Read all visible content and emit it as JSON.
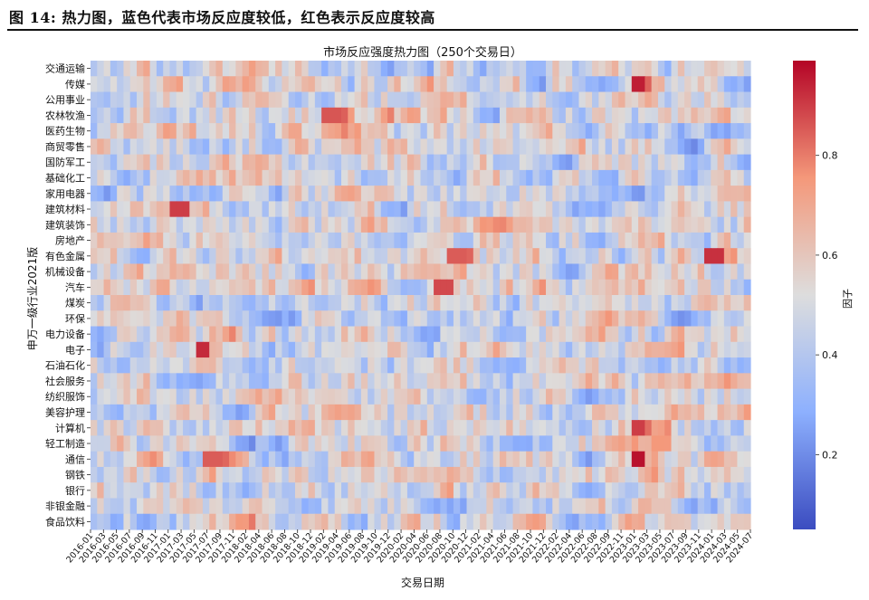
{
  "figure_caption": "图 14: 热力图，蓝色代表市场反应度较低，红色表示反应度较高",
  "chart_data": {
    "type": "heatmap",
    "title": "市场反应强度热力图（250个交易日）",
    "xlabel": "交易日期",
    "ylabel": "申万一级行业2021版",
    "colorbar_label": "因子",
    "colorbar_ticks": [
      0.2,
      0.4,
      0.6,
      0.8
    ],
    "value_range": [
      0.05,
      0.99
    ],
    "colormap": "coolwarm",
    "colormap_colors": [
      "#3b4cc0",
      "#8db0fe",
      "#dddddd",
      "#f4987a",
      "#b40426"
    ],
    "columns": 100,
    "rows": [
      "交通运输",
      "传媒",
      "公用事业",
      "农林牧渔",
      "医药生物",
      "商贸零售",
      "国防军工",
      "基础化工",
      "家用电器",
      "建筑材料",
      "建筑装饰",
      "房地产",
      "有色金属",
      "机械设备",
      "汽车",
      "煤炭",
      "环保",
      "电力设备",
      "电子",
      "石油石化",
      "社会服务",
      "纺织服饰",
      "美容护理",
      "计算机",
      "轻工制造",
      "通信",
      "钢铁",
      "银行",
      "非银金融",
      "食品饮料"
    ],
    "x_tick_labels": [
      "2016-01",
      "2016-03",
      "2016-05",
      "2016-07",
      "2016-09",
      "2016-11",
      "2017-01",
      "2017-03",
      "2017-05",
      "2017-07",
      "2017-09",
      "2017-11",
      "2018-02",
      "2018-04",
      "2018-06",
      "2018-08",
      "2018-10",
      "2018-12",
      "2019-02",
      "2019-04",
      "2019-06",
      "2019-08",
      "2019-10",
      "2019-12",
      "2020-02",
      "2020-04",
      "2020-06",
      "2020-08",
      "2020-10",
      "2020-12",
      "2021-02",
      "2021-04",
      "2021-06",
      "2021-08",
      "2021-10",
      "2021-12",
      "2022-02",
      "2022-04",
      "2022-06",
      "2022-08",
      "2022-09",
      "2022-11",
      "2023-01",
      "2023-03",
      "2023-05",
      "2023-07",
      "2023-09",
      "2023-11",
      "2024-01",
      "2024-03",
      "2024-05",
      "2024-07"
    ],
    "hotspots": [
      {
        "row": "传媒",
        "x_from": "2023-01",
        "x_to": "2023-03",
        "value": 0.95
      },
      {
        "row": "通信",
        "x_from": "2023-01",
        "x_to": "2023-03",
        "value": 0.97
      },
      {
        "row": "计算机",
        "x_from": "2023-01",
        "x_to": "2023-03",
        "value": 0.9
      },
      {
        "row": "有色金属",
        "x_from": "2024-01",
        "x_to": "2024-03",
        "value": 0.92
      },
      {
        "row": "电子",
        "x_from": "2017-05",
        "x_to": "2017-07",
        "value": 0.93
      },
      {
        "row": "建筑材料",
        "x_from": "2017-01",
        "x_to": "2017-03",
        "value": 0.9
      },
      {
        "row": "汽车",
        "x_from": "2020-08",
        "x_to": "2020-10",
        "value": 0.88
      },
      {
        "row": "有色金属",
        "x_from": "2020-10",
        "x_to": "2020-12",
        "value": 0.85
      },
      {
        "row": "通信",
        "x_from": "2017-07",
        "x_to": "2017-09",
        "value": 0.85
      },
      {
        "row": "农林牧渔",
        "x_from": "2019-02",
        "x_to": "2019-04",
        "value": 0.86
      }
    ]
  }
}
